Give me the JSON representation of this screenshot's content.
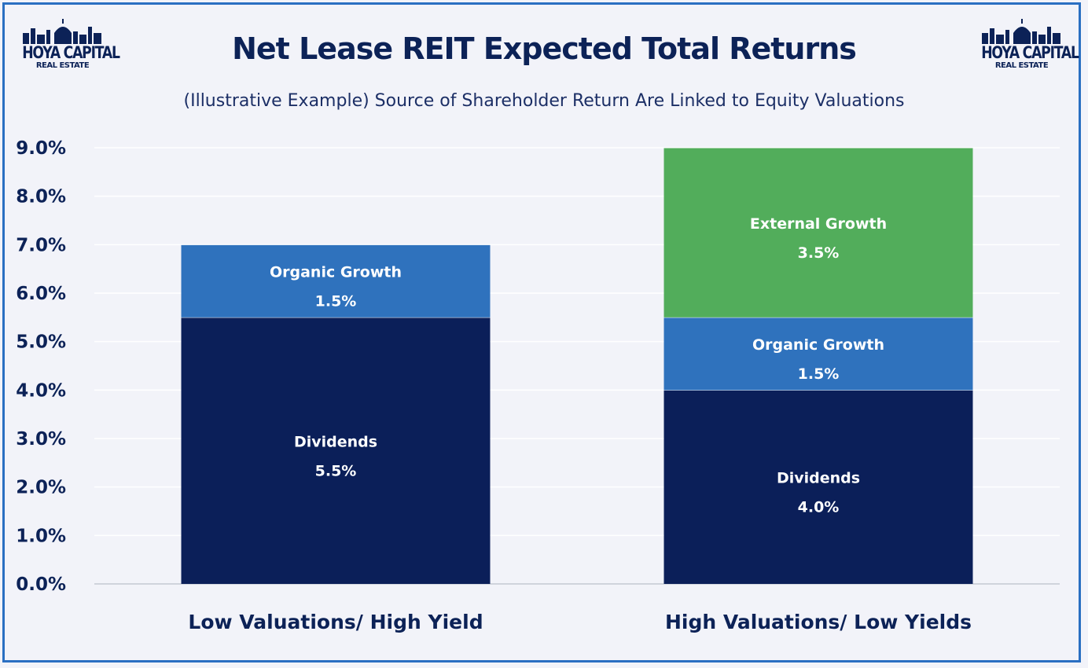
{
  "title": "Net Lease REIT Expected Total Returns",
  "subtitle": "(Illustrative Example) Source of Shareholder Return Are Linked to Equity Valuations",
  "logo": {
    "line1": "HOYA CAPITAL",
    "line2": "REAL ESTATE"
  },
  "colors": {
    "frame": "#2a6fc2",
    "background": "#f2f3f9",
    "title": "#0c2257",
    "dividends": "#0b1f59",
    "organic": "#2f72bd",
    "external": "#52ad5b",
    "grid": "#ffffff",
    "axis": "#cfd3dc"
  },
  "chart_data": {
    "type": "bar",
    "stacked": true,
    "categories": [
      "Low Valuations/ High Yield",
      "High Valuations/ Low Yields"
    ],
    "series": [
      {
        "name": "Dividends",
        "values": [
          5.5,
          4.0
        ],
        "labels": [
          "5.5%",
          "4.0%"
        ],
        "color": "#0b1f59"
      },
      {
        "name": "Organic Growth",
        "values": [
          1.5,
          1.5
        ],
        "labels": [
          "1.5%",
          "1.5%"
        ],
        "color": "#2f72bd"
      },
      {
        "name": "External Growth",
        "values": [
          0,
          3.5
        ],
        "labels": [
          "",
          "3.5%"
        ],
        "color": "#52ad5b"
      }
    ],
    "ylim": [
      0,
      9
    ],
    "yticks": [
      "0.0%",
      "1.0%",
      "2.0%",
      "3.0%",
      "4.0%",
      "5.0%",
      "6.0%",
      "7.0%",
      "8.0%",
      "9.0%"
    ],
    "grid": true,
    "legend": "none"
  }
}
